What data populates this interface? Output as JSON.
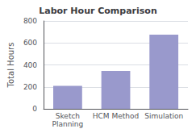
{
  "chart_data": {
    "type": "bar",
    "title": "Labor Hour Comparison",
    "categories": [
      "Sketch\nPlanning",
      "HCM Method",
      "Simulation"
    ],
    "values": [
      210,
      345,
      675
    ],
    "color": "#9999cc",
    "ylabel": "Total Hours",
    "ylim": [
      0,
      800
    ],
    "yticks": [
      0,
      200,
      400,
      600,
      800
    ],
    "grid": true
  }
}
